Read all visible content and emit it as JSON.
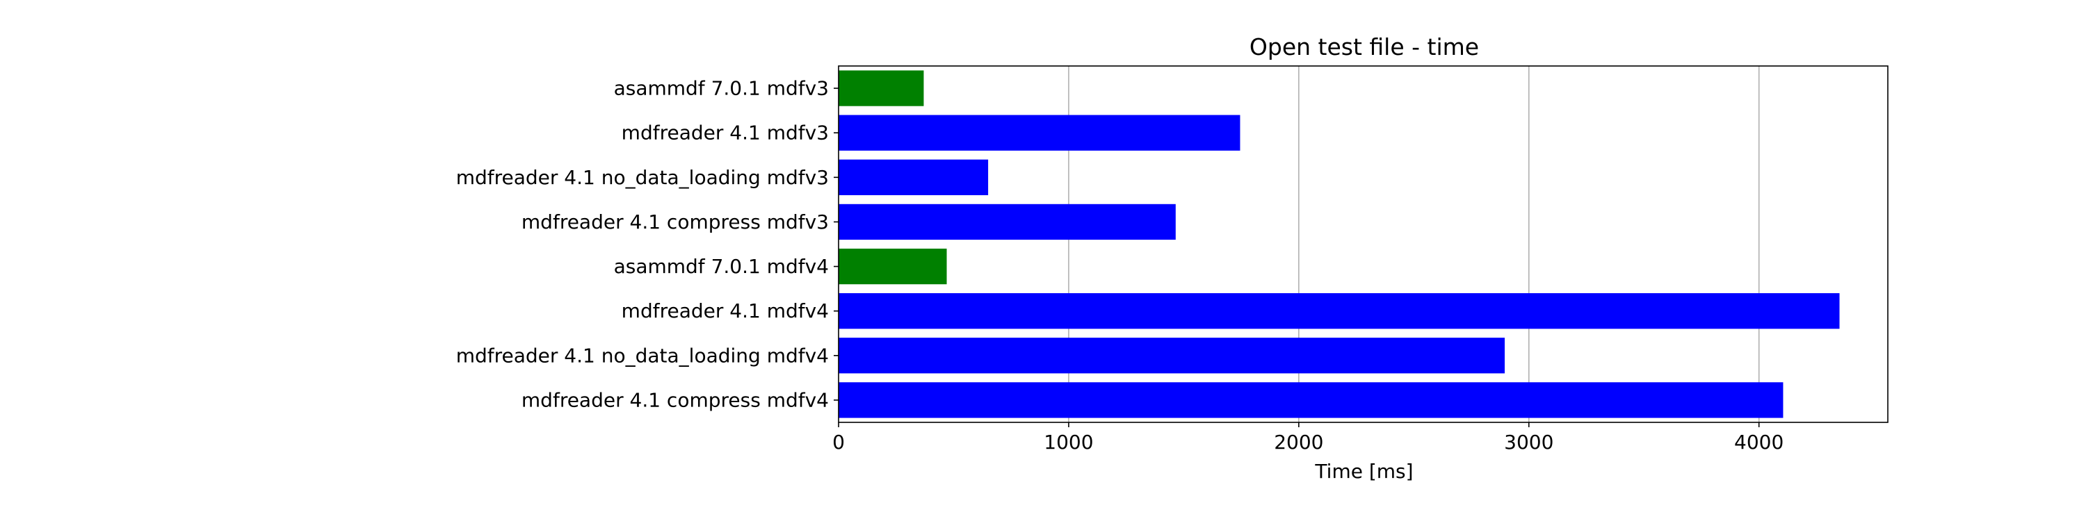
{
  "chart_data": {
    "type": "bar",
    "orientation": "horizontal",
    "title": "Open test file - time",
    "xlabel": "Time [ms]",
    "ylabel": "",
    "xlim": [
      0,
      4560
    ],
    "x_ticks": [
      0,
      1000,
      2000,
      3000,
      4000
    ],
    "grid": {
      "x": true,
      "y": false
    },
    "categories": [
      "asammdf 7.0.1 mdfv3",
      "mdfreader 4.1 mdfv3",
      "mdfreader 4.1 no_data_loading mdfv3",
      "mdfreader 4.1 compress mdfv3",
      "asammdf 7.0.1 mdfv4",
      "mdfreader 4.1 mdfv4",
      "mdfreader 4.1 no_data_loading mdfv4",
      "mdfreader 4.1 compress mdfv4"
    ],
    "values": [
      370,
      1745,
      650,
      1465,
      470,
      4350,
      2895,
      4105
    ],
    "colors": [
      "#008000",
      "#0000ff",
      "#0000ff",
      "#0000ff",
      "#008000",
      "#0000ff",
      "#0000ff",
      "#0000ff"
    ]
  }
}
